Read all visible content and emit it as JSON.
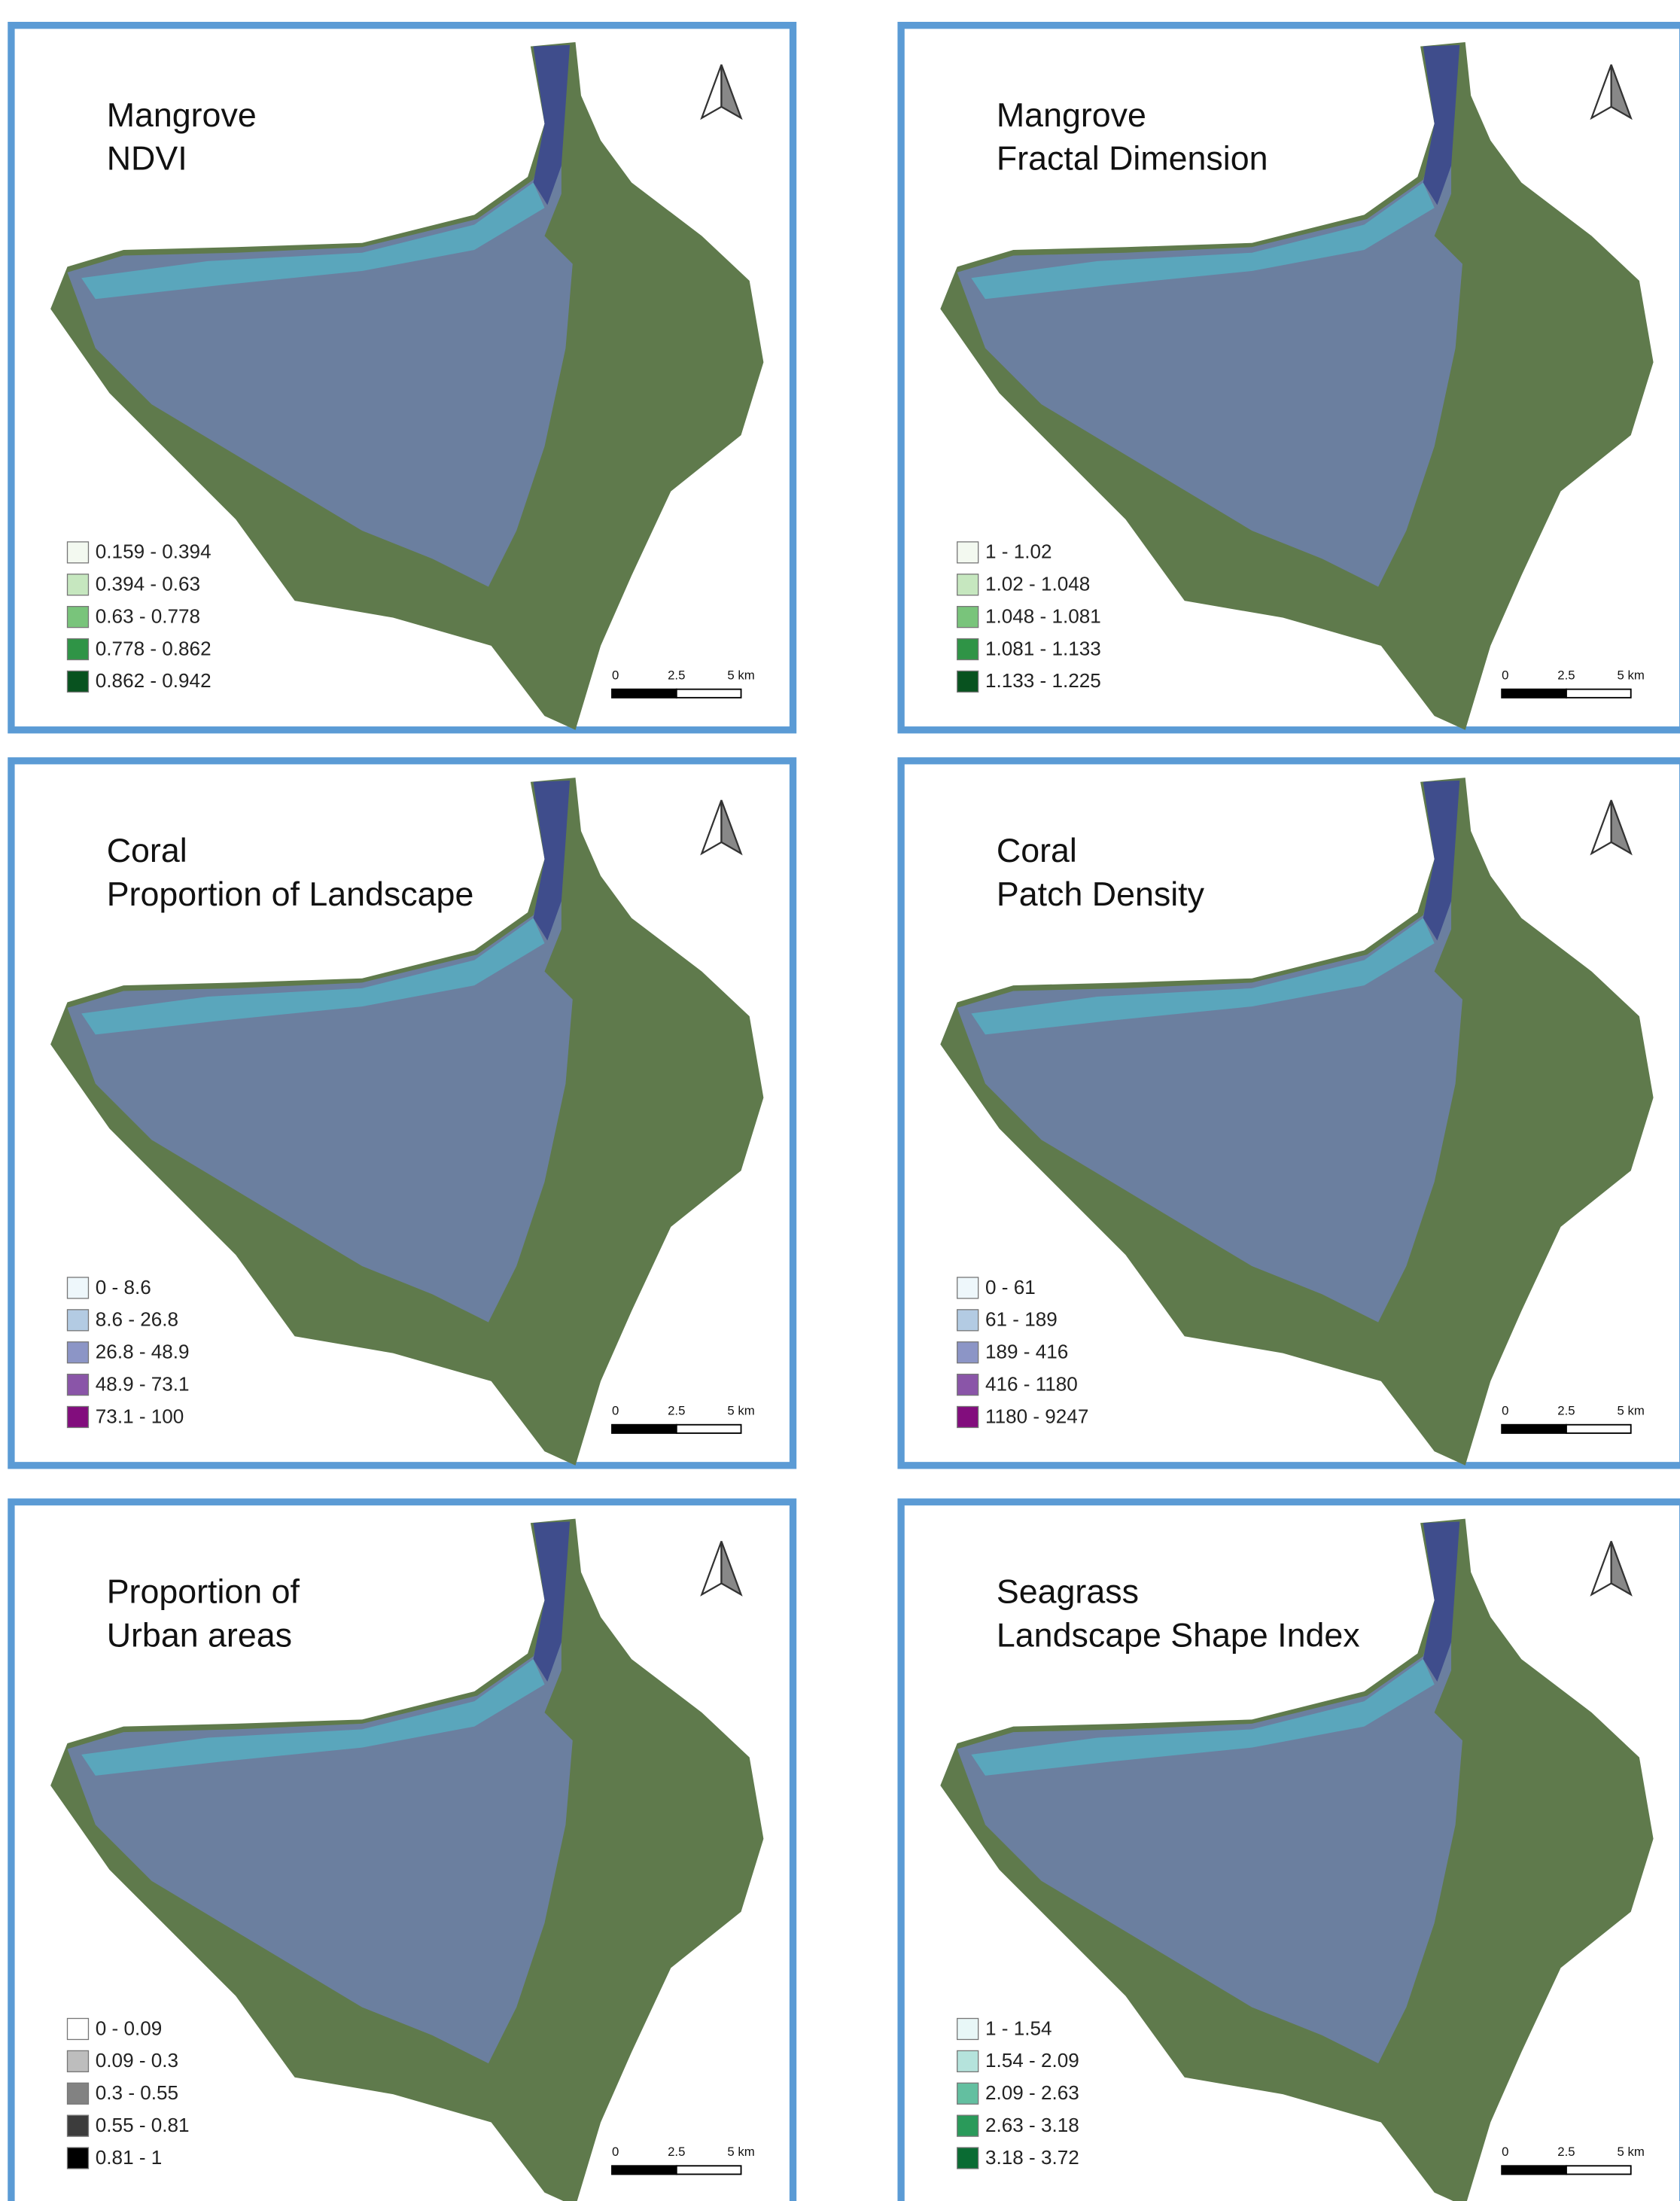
{
  "panels": [
    {
      "title": [
        "Mangrove",
        "NDVI"
      ],
      "legend": [
        {
          "label": "0.159 - 0.394",
          "color": "#f3f9f0"
        },
        {
          "label": "0.394 - 0.63",
          "color": "#c6e7bf"
        },
        {
          "label": "0.63 - 0.778",
          "color": "#79c47b"
        },
        {
          "label": "0.778 - 0.862",
          "color": "#2f9446"
        },
        {
          "label": "0.862 - 0.942",
          "color": "#08521f"
        }
      ]
    },
    {
      "title": [
        "Mangrove",
        "Fractal Dimension"
      ],
      "legend": [
        {
          "label": "1 - 1.02",
          "color": "#f3f9f0"
        },
        {
          "label": "1.02 - 1.048",
          "color": "#c6e7bf"
        },
        {
          "label": "1.048 - 1.081",
          "color": "#79c47b"
        },
        {
          "label": "1.081 - 1.133",
          "color": "#2f9446"
        },
        {
          "label": "1.133 - 1.225",
          "color": "#08521f"
        }
      ]
    },
    {
      "title": [
        "Coral",
        "Proportion of Landscape"
      ],
      "legend": [
        {
          "label": "0 - 8.6",
          "color": "#eef7fb"
        },
        {
          "label": "8.6 - 26.8",
          "color": "#b3cbe3"
        },
        {
          "label": "26.8 - 48.9",
          "color": "#8c95c6"
        },
        {
          "label": "48.9 - 73.1",
          "color": "#8a55a8"
        },
        {
          "label": "73.1 - 100",
          "color": "#820d7d"
        }
      ]
    },
    {
      "title": [
        "Coral",
        "Patch Density"
      ],
      "legend": [
        {
          "label": "0 - 61",
          "color": "#eef7fb"
        },
        {
          "label": "61 - 189",
          "color": "#b3cbe3"
        },
        {
          "label": "189 - 416",
          "color": "#8c95c6"
        },
        {
          "label": "416 - 1180",
          "color": "#8a55a8"
        },
        {
          "label": "1180 - 9247",
          "color": "#820d7d"
        }
      ]
    },
    {
      "title": [
        "Proportion of",
        "Urban areas"
      ],
      "legend": [
        {
          "label": "0 - 0.09",
          "color": "#ffffff"
        },
        {
          "label": "0.09 - 0.3",
          "color": "#bdbdbd"
        },
        {
          "label": "0.3 - 0.55",
          "color": "#828282"
        },
        {
          "label": "0.55 - 0.81",
          "color": "#3c3c3c"
        },
        {
          "label": "0.81 - 1",
          "color": "#000000"
        }
      ]
    },
    {
      "title": [
        "Seagrass",
        "Landscape Shape Index"
      ],
      "legend": [
        {
          "label": "1 - 1.54",
          "color": "#e8f7f7"
        },
        {
          "label": "1.54 - 2.09",
          "color": "#b5e3dc"
        },
        {
          "label": "2.09 - 2.63",
          "color": "#63bfa0"
        },
        {
          "label": "2.63 - 3.18",
          "color": "#2a9a5a"
        },
        {
          "label": "3.18 - 3.72",
          "color": "#0a6b33"
        }
      ]
    }
  ],
  "scale_labels": [
    "0",
    "2.5",
    "5 km"
  ]
}
